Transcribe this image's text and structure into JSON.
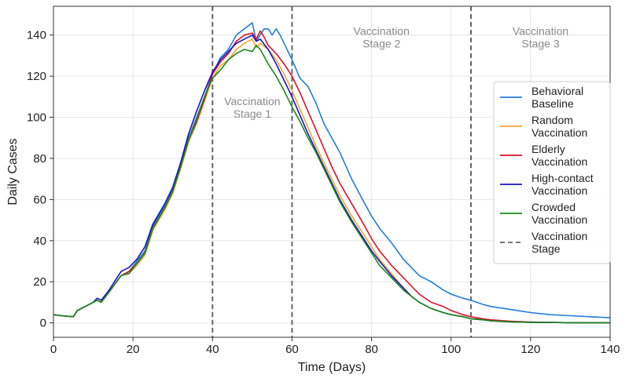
{
  "chart_data": {
    "type": "line",
    "xlabel": "Time (Days)",
    "ylabel": "Daily Cases",
    "xlim": [
      0,
      140
    ],
    "ylim": [
      -7,
      154
    ],
    "xticks": [
      0,
      20,
      40,
      60,
      80,
      100,
      120,
      140
    ],
    "yticks": [
      0,
      20,
      40,
      60,
      80,
      100,
      120,
      140
    ],
    "grid": true,
    "legend_position": "center-right",
    "vlines": [
      40,
      60,
      105
    ],
    "vline_legend_label": "Vaccination Stage",
    "vline_color": "#666666",
    "annotation_color": "#8a8a8a",
    "annotations": [
      {
        "lines": [
          "Vaccination",
          "Stage 1"
        ],
        "x": 50,
        "y": 106
      },
      {
        "lines": [
          "Vaccination",
          "Stage 2"
        ],
        "x": 82.5,
        "y": 140
      },
      {
        "lines": [
          "Vaccination",
          "Stage 3"
        ],
        "x": 122.5,
        "y": 140
      }
    ],
    "series": [
      {
        "name": "Behavioral Baseline",
        "color": "#1f7de0",
        "x": [
          0,
          2,
          5,
          6,
          8,
          10,
          11,
          12,
          14,
          17,
          19,
          21,
          23,
          25,
          28,
          30,
          32,
          34,
          36,
          38,
          40,
          42,
          44,
          46,
          48,
          50,
          51,
          52,
          53,
          54,
          55,
          56,
          57,
          58,
          60,
          62,
          64,
          66,
          68,
          70,
          72,
          75,
          78,
          80,
          82,
          85,
          88,
          90,
          92,
          95,
          98,
          100,
          103,
          105,
          108,
          110,
          115,
          120,
          125,
          130,
          135,
          140
        ],
        "values": [
          4,
          3.5,
          3,
          6,
          8,
          10,
          11,
          10,
          15,
          23,
          25,
          30,
          35,
          47,
          57,
          65,
          77,
          90,
          100,
          110,
          121,
          129,
          133,
          140,
          143,
          146,
          137,
          140,
          143,
          143,
          140,
          143,
          140,
          136,
          128,
          119,
          115,
          107,
          97,
          90,
          83,
          70,
          59,
          52,
          46,
          39,
          31,
          27,
          23,
          20,
          16,
          14,
          12,
          11,
          9,
          8,
          6.5,
          5,
          4,
          3.5,
          3,
          2.5
        ]
      },
      {
        "name": "Random Vaccination",
        "color": "#f5a62b",
        "x": [
          0,
          2,
          5,
          6,
          8,
          10,
          11,
          12,
          14,
          17,
          19,
          21,
          23,
          25,
          28,
          30,
          32,
          34,
          36,
          38,
          40,
          42,
          44,
          46,
          48,
          50,
          51,
          52,
          54,
          56,
          58,
          60,
          62,
          64,
          66,
          68,
          70,
          72,
          75,
          78,
          80,
          82,
          85,
          88,
          90,
          92,
          95,
          98,
          100,
          103,
          105,
          108,
          110,
          115,
          120,
          125,
          130,
          135,
          140
        ],
        "values": [
          4,
          3.5,
          3,
          6,
          8,
          10,
          11,
          10,
          15,
          23,
          24,
          28,
          33,
          45,
          55,
          63,
          75,
          88,
          97,
          108,
          119,
          125,
          128,
          133,
          136,
          138,
          134,
          136,
          133,
          128,
          121,
          113,
          104,
          95,
          86,
          78,
          70,
          62,
          52,
          43,
          37,
          31,
          24,
          17,
          13,
          10,
          7,
          5,
          4,
          3,
          2,
          1.5,
          1,
          0.5,
          0.3,
          0.2,
          0.1,
          0.1,
          0.1
        ]
      },
      {
        "name": "Elderly Vaccination",
        "color": "#e0102a",
        "x": [
          0,
          2,
          5,
          6,
          8,
          10,
          11,
          12,
          14,
          17,
          19,
          21,
          23,
          25,
          28,
          30,
          32,
          34,
          36,
          38,
          40,
          42,
          44,
          46,
          48,
          50,
          51,
          52,
          53,
          54,
          56,
          58,
          60,
          62,
          64,
          66,
          68,
          70,
          72,
          75,
          78,
          80,
          82,
          85,
          88,
          90,
          92,
          95,
          98,
          100,
          103,
          105,
          108,
          110,
          115,
          120,
          125,
          130,
          135,
          140
        ],
        "values": [
          4,
          3.5,
          3,
          6,
          8,
          10,
          11,
          10,
          15,
          23,
          25,
          29,
          34,
          46,
          56,
          64,
          76,
          89,
          98,
          109,
          121,
          127,
          131,
          137,
          140,
          141,
          138,
          142,
          139,
          135,
          131,
          126,
          120,
          112,
          103,
          94,
          85,
          76,
          68,
          58,
          48,
          41,
          35,
          28,
          22,
          18,
          14,
          10,
          8,
          6,
          4,
          3,
          2,
          1.5,
          0.8,
          0.4,
          0.2,
          0.1,
          0.1,
          0.1
        ]
      },
      {
        "name": "High-contact Vaccination",
        "color": "#1a12c8",
        "x": [
          0,
          2,
          5,
          6,
          8,
          10,
          11,
          12,
          14,
          17,
          19,
          21,
          23,
          25,
          28,
          30,
          32,
          34,
          36,
          38,
          40,
          42,
          44,
          46,
          48,
          50,
          51,
          52,
          54,
          56,
          58,
          60,
          62,
          64,
          66,
          68,
          70,
          72,
          75,
          78,
          80,
          82,
          85,
          88,
          90,
          92,
          95,
          98,
          100,
          103,
          105,
          108,
          110,
          115,
          120,
          125,
          130,
          135,
          140
        ],
        "values": [
          4,
          3.5,
          3,
          6,
          8,
          10,
          12,
          11,
          16,
          25,
          27,
          31,
          37,
          48,
          58,
          66,
          78,
          92,
          103,
          113,
          122,
          128,
          132,
          136,
          138,
          140,
          137,
          138,
          133,
          126,
          118,
          110,
          101,
          92,
          84,
          76,
          68,
          60,
          50,
          41,
          35,
          30,
          23,
          17,
          13,
          10,
          7,
          5,
          4,
          3,
          2,
          1.5,
          1,
          0.5,
          0.3,
          0.2,
          0.1,
          0.1,
          0.1
        ]
      },
      {
        "name": "Crowded Vaccination",
        "color": "#1a8a1a",
        "x": [
          0,
          2,
          5,
          6,
          8,
          10,
          11,
          12,
          14,
          17,
          19,
          21,
          23,
          25,
          28,
          30,
          32,
          34,
          36,
          38,
          40,
          42,
          44,
          46,
          48,
          50,
          51,
          52,
          54,
          56,
          58,
          60,
          62,
          64,
          66,
          68,
          70,
          72,
          75,
          78,
          80,
          82,
          85,
          88,
          90,
          92,
          95,
          98,
          100,
          103,
          105,
          108,
          110,
          115,
          120,
          125,
          130,
          135,
          140
        ],
        "values": [
          4,
          3.5,
          3,
          6,
          8,
          10,
          11,
          10,
          15,
          23,
          24,
          29,
          34,
          46,
          56,
          64,
          76,
          89,
          99,
          110,
          119,
          123,
          128,
          131,
          133,
          132,
          135,
          133,
          126,
          120,
          113,
          105,
          98,
          90,
          83,
          75,
          67,
          59,
          49,
          40,
          34,
          28,
          22,
          16,
          13,
          10,
          7,
          5,
          4,
          3,
          2,
          1.5,
          1,
          0.5,
          0.3,
          0.2,
          0.1,
          0.1,
          0.1
        ]
      }
    ]
  }
}
